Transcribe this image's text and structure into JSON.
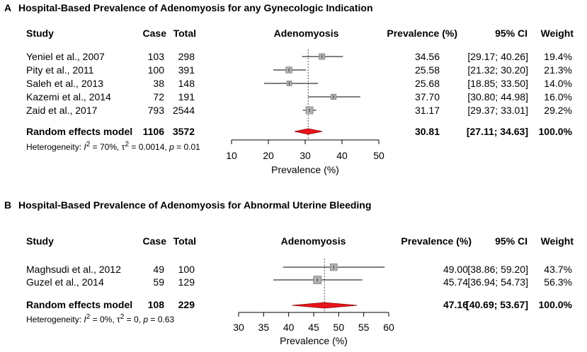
{
  "chart_data": [
    {
      "type": "forest",
      "letter": "A",
      "title": "Hospital-Based Prevalence of Adenomyosis for any Gynecologic Indication",
      "headers": {
        "study": "Study",
        "case": "Case",
        "total": "Total",
        "plot": "Adenomyosis",
        "prevalence": "Prevalence (%)",
        "ci": "95% CI",
        "weight": "Weight"
      },
      "studies": [
        {
          "name": "Yeniel et al., 2007",
          "case": "103",
          "total": "298",
          "est": 34.56,
          "lo": 29.17,
          "hi": 40.26,
          "est_label": "34.56",
          "ci_label": "[29.17; 40.26]",
          "weight_label": "19.4%",
          "weight": 19.4
        },
        {
          "name": "Pity et al., 2011",
          "case": "100",
          "total": "391",
          "est": 25.58,
          "lo": 21.32,
          "hi": 30.2,
          "est_label": "25.58",
          "ci_label": "[21.32; 30.20]",
          "weight_label": "21.3%",
          "weight": 21.3
        },
        {
          "name": "Saleh et al., 2013",
          "case": "38",
          "total": "148",
          "est": 25.68,
          "lo": 18.85,
          "hi": 33.5,
          "est_label": "25.68",
          "ci_label": "[18.85; 33.50]",
          "weight_label": "14.0%",
          "weight": 14.0
        },
        {
          "name": "Kazemi et al., 2014",
          "case": "72",
          "total": "191",
          "est": 37.7,
          "lo": 30.8,
          "hi": 44.98,
          "est_label": "37.70",
          "ci_label": "[30.80; 44.98]",
          "weight_label": "16.0%",
          "weight": 16.0
        },
        {
          "name": "Zaid et al., 2017",
          "case": "793",
          "total": "2544",
          "est": 31.17,
          "lo": 29.37,
          "hi": 33.01,
          "est_label": "31.17",
          "ci_label": "[29.37; 33.01]",
          "weight_label": "29.2%",
          "weight": 29.2
        }
      ],
      "model": {
        "label": "Random effects model",
        "case": "1106",
        "total": "3572",
        "est": 30.81,
        "lo": 27.11,
        "hi": 34.63,
        "est_label": "30.81",
        "ci_label": "[27.11; 34.63]",
        "weight_label": "100.0%"
      },
      "heterogeneity": {
        "prefix": "Heterogeneity: ",
        "i2": "70%",
        "tau2": "0.0014",
        "p": "0.01"
      },
      "xaxis": {
        "label": "Prevalence (%)",
        "ticks": [
          10,
          20,
          30,
          40,
          50
        ],
        "range": [
          10,
          50
        ]
      }
    },
    {
      "type": "forest",
      "letter": "B",
      "title": "Hospital-Based Prevalence of Adenomyosis for Abnormal Uterine Bleeding",
      "headers": {
        "study": "Study",
        "case": "Case",
        "total": "Total",
        "plot": "Adenomyosis",
        "prevalence": "Prevalence (%)",
        "ci": "95% CI",
        "weight": "Weight"
      },
      "studies": [
        {
          "name": "Maghsudi et al., 2012",
          "case": "49",
          "total": "100",
          "est": 49.0,
          "lo": 38.86,
          "hi": 59.2,
          "est_label": "49.00",
          "ci_label": "[38.86; 59.20]",
          "weight_label": "43.7%",
          "weight": 43.7
        },
        {
          "name": "Guzel et al., 2014",
          "case": "59",
          "total": "129",
          "est": 45.74,
          "lo": 36.94,
          "hi": 54.73,
          "est_label": "45.74",
          "ci_label": "[36.94; 54.73]",
          "weight_label": "56.3%",
          "weight": 56.3
        }
      ],
      "model": {
        "label": "Random effects model",
        "case": "108",
        "total": "229",
        "est": 47.16,
        "lo": 40.69,
        "hi": 53.67,
        "est_label": "47.16",
        "ci_label": "[40.69; 53.67]",
        "weight_label": "100.0%"
      },
      "heterogeneity": {
        "prefix": "Heterogeneity: ",
        "i2": "0%",
        "tau2": "0",
        "p": "0.63"
      },
      "xaxis": {
        "label": "Prevalence (%)",
        "ticks": [
          30,
          35,
          40,
          45,
          50,
          55,
          60
        ],
        "range": [
          30,
          60
        ]
      }
    }
  ]
}
